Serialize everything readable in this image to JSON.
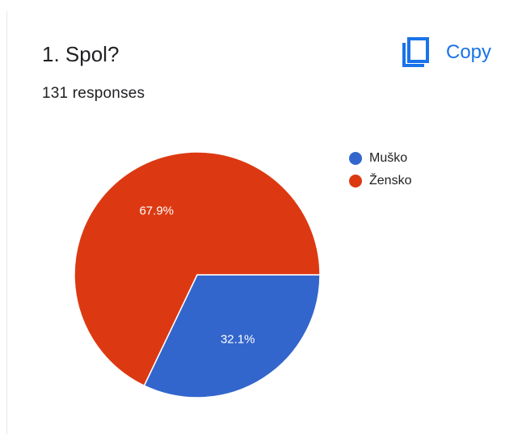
{
  "question": {
    "title": "1. Spol?",
    "responses": "131 responses"
  },
  "toolbar": {
    "copy_label": "Copy",
    "copy_icon": "copy-icon",
    "accent_color": "#1a73e8"
  },
  "chart_data": {
    "type": "pie",
    "slices": [
      {
        "label": "Muško",
        "value": 32.1,
        "value_label": "32.1%",
        "color": "#3366cc"
      },
      {
        "label": "Žensko",
        "value": 67.9,
        "value_label": "67.9%",
        "color": "#dc3912"
      }
    ],
    "legend_position": "right-top",
    "start_angle": "3 o'clock, clockwise"
  }
}
